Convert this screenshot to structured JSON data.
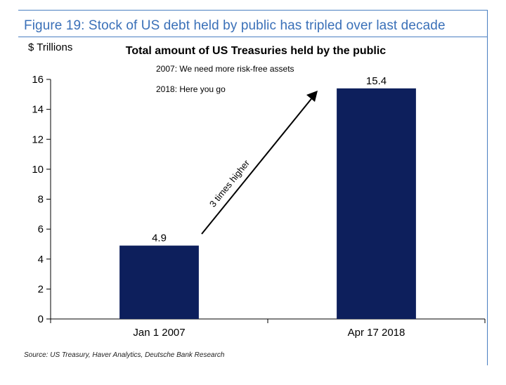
{
  "figure": {
    "title": "Figure 19: Stock of US debt held by public has tripled over last decade",
    "source": "Source: US Treasury, Haver Analytics, Deutsche Bank Research"
  },
  "chart_data": {
    "type": "bar",
    "title": "Total amount of US Treasuries held by the public",
    "unit_label": "$ Trillions",
    "categories": [
      "Jan 1 2007",
      "Apr 17 2018"
    ],
    "values": [
      4.9,
      15.4
    ],
    "value_labels": [
      "4.9",
      "15.4"
    ],
    "ylim": [
      0,
      16
    ],
    "yticks": [
      0,
      2,
      4,
      6,
      8,
      10,
      12,
      14,
      16
    ],
    "grid": false,
    "bar_color": "#0d1f5c",
    "annotations": {
      "note_1": "2007: We need more risk-free assets",
      "note_2": "2018: Here you go",
      "arrow_label": "3 times higher"
    }
  },
  "colors": {
    "accent": "#3a70b8",
    "bar": "#0d1f5c"
  }
}
